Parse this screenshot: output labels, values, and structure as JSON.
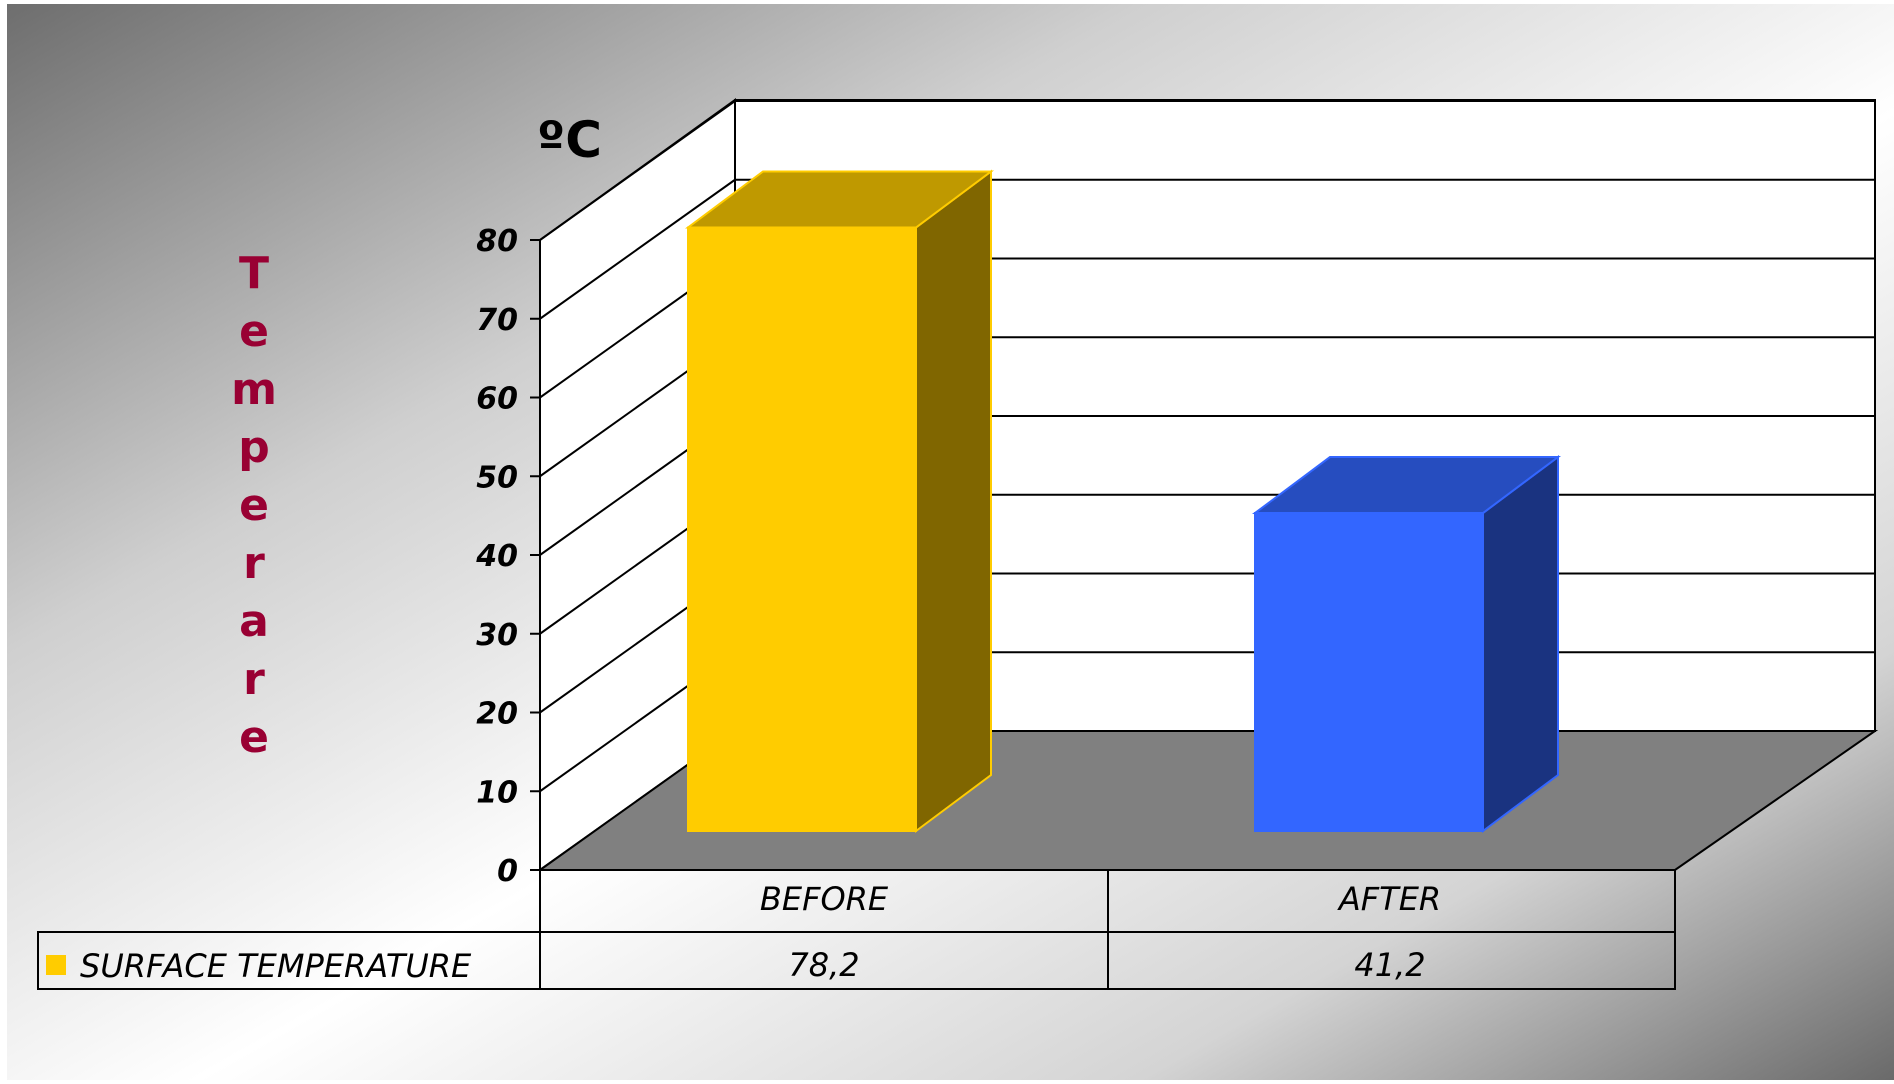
{
  "chart_data": {
    "type": "bar",
    "unit_label": "ºC",
    "ylabel": "Temperare",
    "categories": [
      "BEFORE",
      "AFTER"
    ],
    "series": [
      {
        "name": "SURFACE TEMPERATURE",
        "values": [
          78.2,
          41.2
        ],
        "display_values": [
          "78,2",
          "41,2"
        ]
      }
    ],
    "bar_colors": [
      "#FFCC00",
      "#3366FF"
    ],
    "ylim": [
      0,
      80
    ],
    "yticks": [
      "0",
      "10",
      "20",
      "30",
      "40",
      "50",
      "60",
      "70",
      "80"
    ],
    "grid": true,
    "legend": "data-table"
  },
  "colors": {
    "ylabel": "#990033",
    "floor": "#808080"
  }
}
